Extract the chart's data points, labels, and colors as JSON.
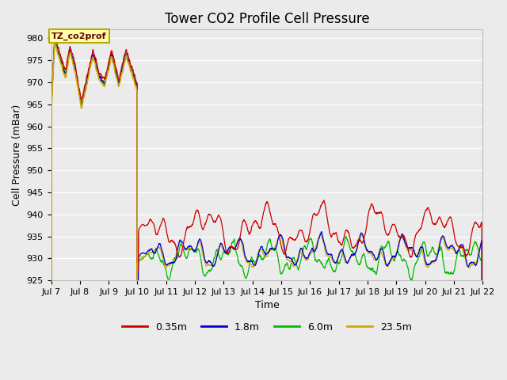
{
  "title": "Tower CO2 Profile Cell Pressure",
  "xlabel": "Time",
  "ylabel": "Cell Pressure (mBar)",
  "ylim": [
    925,
    982
  ],
  "yticks": [
    925,
    930,
    935,
    940,
    945,
    950,
    955,
    960,
    965,
    970,
    975,
    980
  ],
  "x_tick_labels": [
    "Jul 7",
    "Jul 8",
    "Jul 9",
    "Jul 10",
    "Jul 11",
    "Jul 12",
    "Jul 13",
    "Jul 14",
    "Jul 15",
    "Jul 16",
    "Jul 17",
    "Jul 18",
    "Jul 19",
    "Jul 20",
    "Jul 21",
    "Jul 22"
  ],
  "colors": {
    "0.35m": "#cc0000",
    "1.8m": "#0000cc",
    "6.0m": "#00bb00",
    "23.5m": "#ccaa00"
  },
  "legend_labels": [
    "0.35m",
    "1.8m",
    "6.0m",
    "23.5m"
  ],
  "annotation_text": "TZ_co2prof",
  "annotation_box_color": "#ffffaa",
  "annotation_box_edge": "#bbaa00",
  "bg_color": "#ebebeb",
  "grid_color": "#ffffff",
  "title_fontsize": 12,
  "axis_label_fontsize": 9,
  "tick_fontsize": 8,
  "legend_fontsize": 9,
  "linewidth": 0.9
}
